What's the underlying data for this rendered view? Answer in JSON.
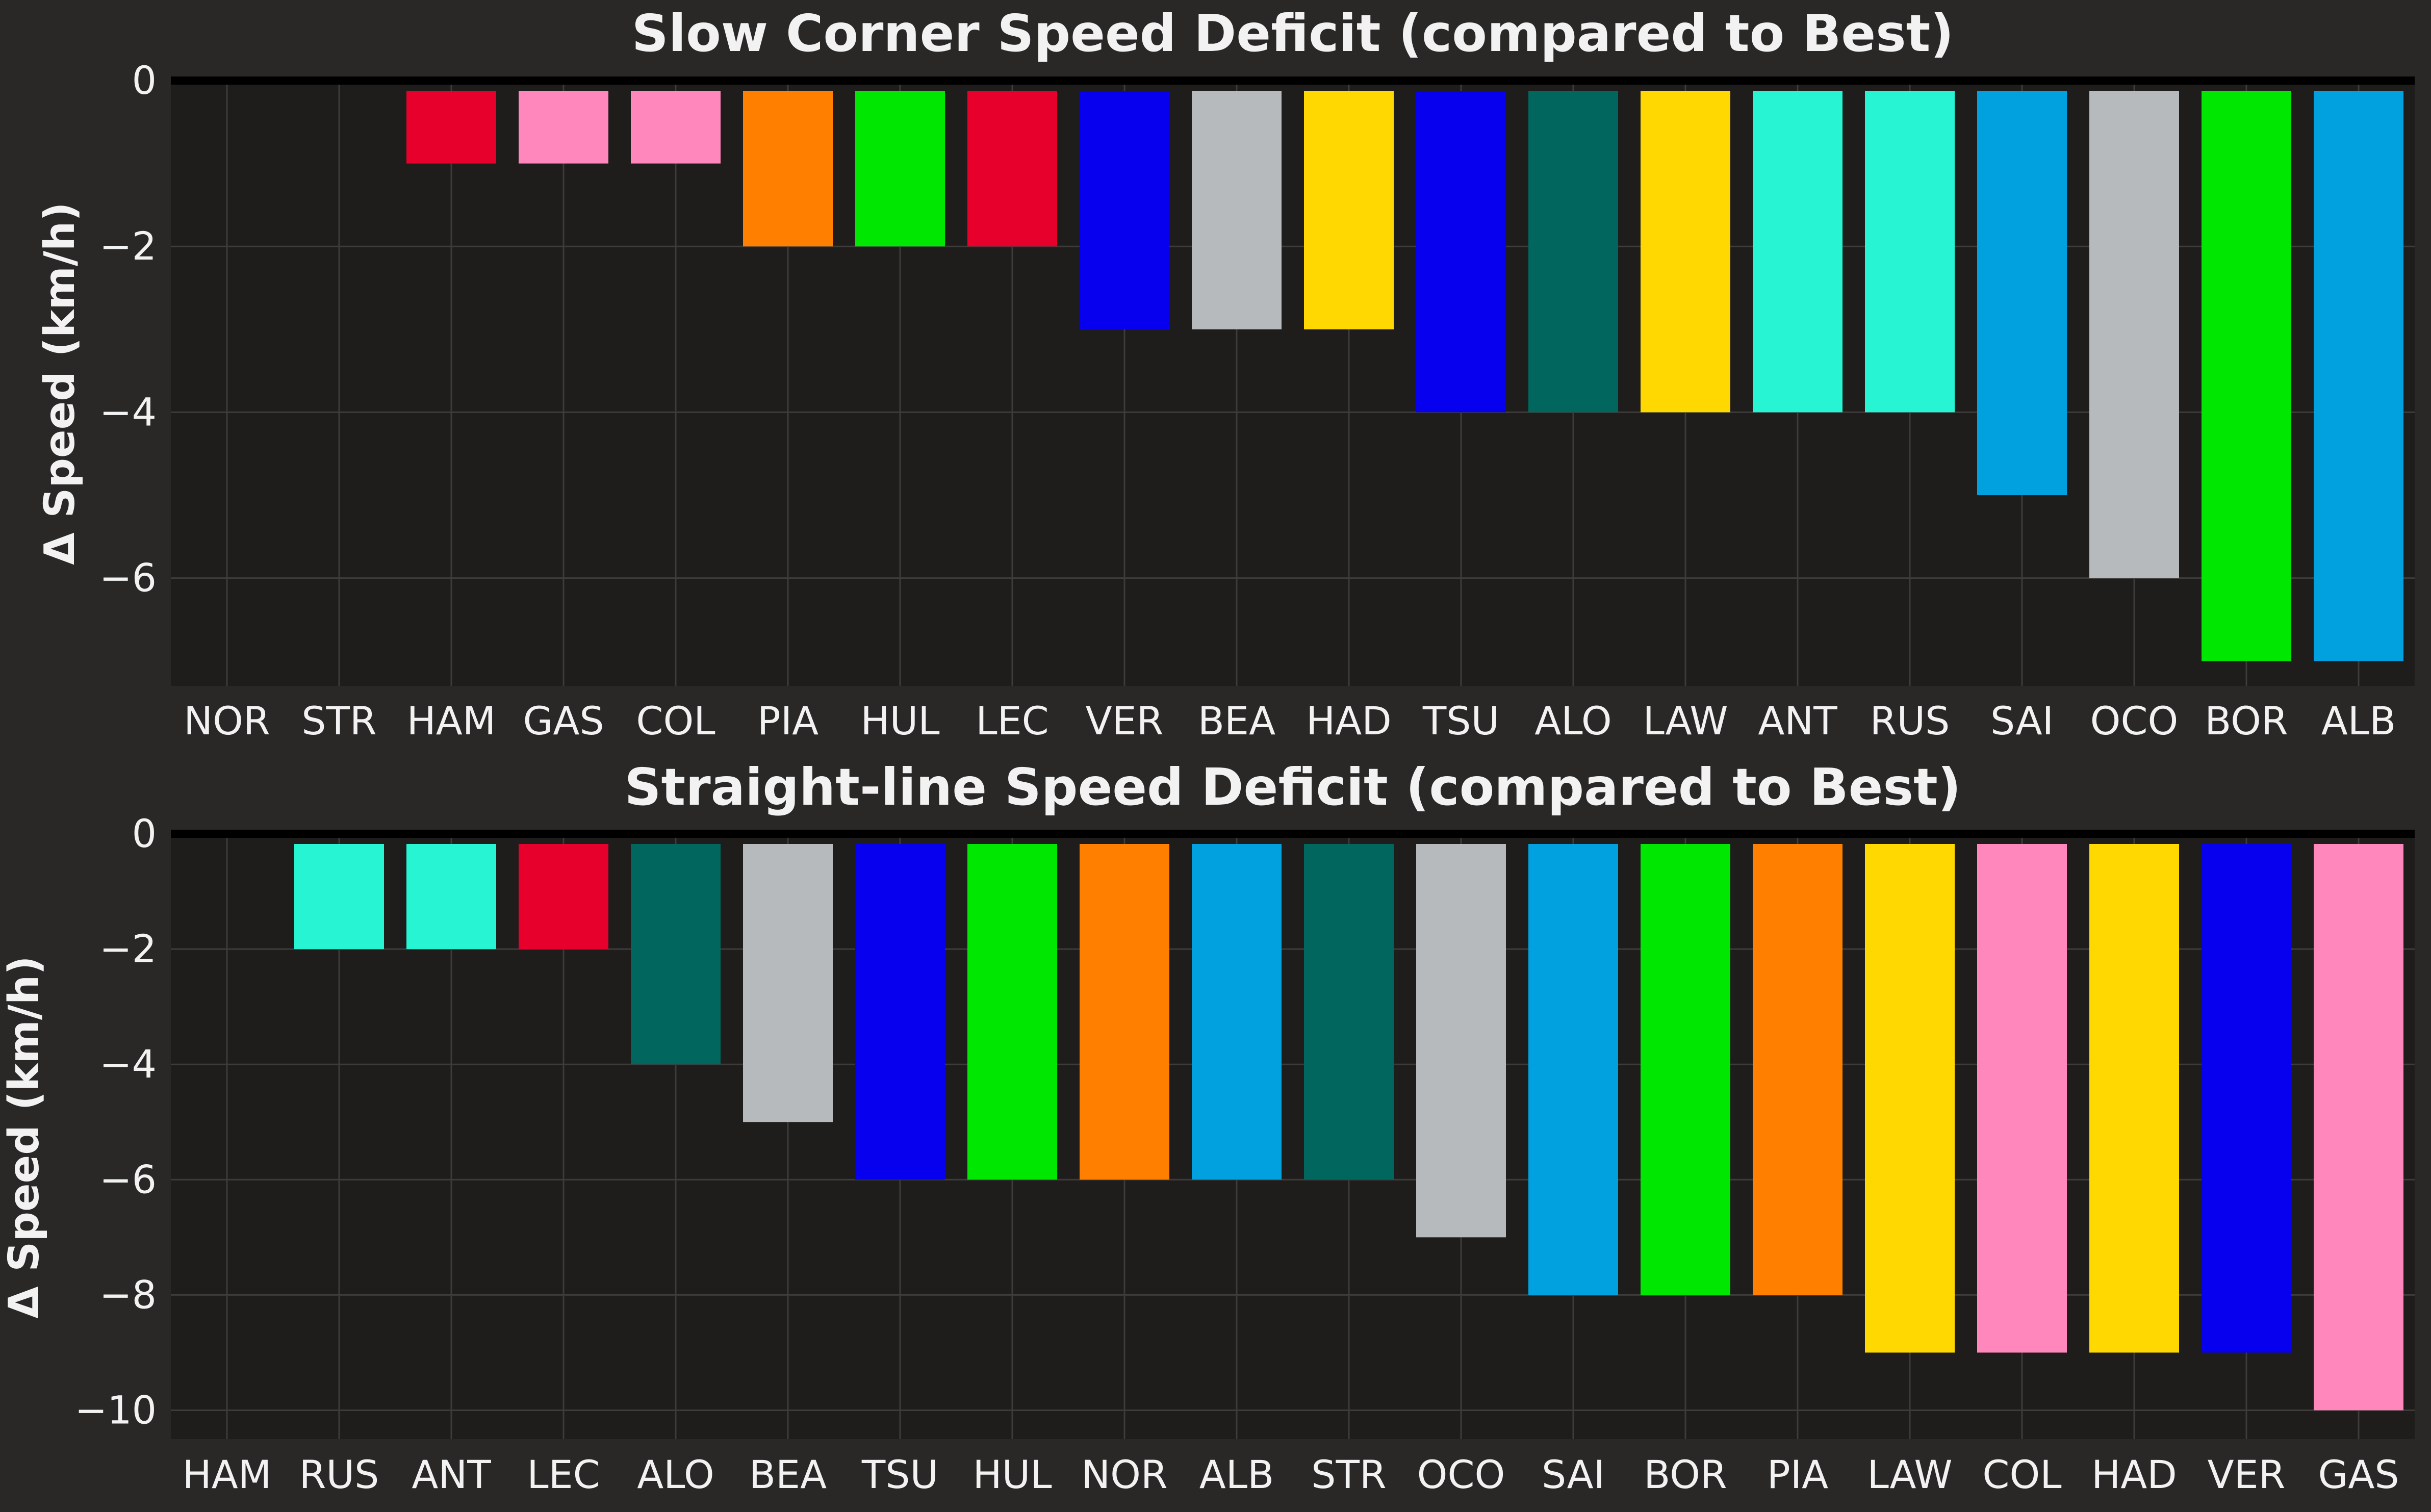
{
  "chart_data": [
    {
      "type": "bar",
      "title": "Slow Corner Speed Deficit (compared to Best)",
      "xlabel": "",
      "ylabel": "Δ Speed (km/h)",
      "ylim": [
        -7.3,
        0
      ],
      "yticks": [
        0,
        -2,
        -4,
        -6
      ],
      "ytick_labels": [
        "0",
        "−2",
        "−4",
        "−6"
      ],
      "grid": true,
      "categories": [
        "NOR",
        "STR",
        "HAM",
        "GAS",
        "COL",
        "PIA",
        "HUL",
        "LEC",
        "VER",
        "BEA",
        "HAD",
        "TSU",
        "ALO",
        "LAW",
        "ANT",
        "RUS",
        "SAI",
        "OCO",
        "BOR",
        "ALB"
      ],
      "values": [
        0,
        0,
        -1,
        -1,
        -1,
        -2,
        -2,
        -2,
        -3,
        -3,
        -3,
        -4,
        -4,
        -4,
        -4,
        -4,
        -5,
        -6,
        -7,
        -7
      ],
      "colors": [
        "#FF8000",
        "#00665E",
        "#E8002D",
        "#FF87BC",
        "#FF87BC",
        "#FF8000",
        "#00E701",
        "#E8002D",
        "#0600EF",
        "#B6BABD",
        "#FED800",
        "#0600EF",
        "#00665E",
        "#FED800",
        "#27F4D2",
        "#27F4D2",
        "#00A1DE",
        "#B6BABD",
        "#00E701",
        "#00A1DE"
      ]
    },
    {
      "type": "bar",
      "title": "Straight-line Speed Deficit (compared to Best)",
      "xlabel": "",
      "ylabel": "Δ Speed (km/h)",
      "ylim": [
        -10.5,
        0
      ],
      "yticks": [
        0,
        -2,
        -4,
        -6,
        -8,
        -10
      ],
      "ytick_labels": [
        "0",
        "−2",
        "−4",
        "−6",
        "−8",
        "−10"
      ],
      "grid": true,
      "categories": [
        "HAM",
        "RUS",
        "ANT",
        "LEC",
        "ALO",
        "BEA",
        "TSU",
        "HUL",
        "NOR",
        "ALB",
        "STR",
        "OCO",
        "SAI",
        "BOR",
        "PIA",
        "LAW",
        "COL",
        "HAD",
        "VER",
        "GAS"
      ],
      "values": [
        0,
        -2,
        -2,
        -2,
        -4,
        -5,
        -6,
        -6,
        -6,
        -6,
        -6,
        -7,
        -8,
        -8,
        -8,
        -9,
        -9,
        -9,
        -9,
        -10
      ],
      "colors": [
        "#E8002D",
        "#27F4D2",
        "#27F4D2",
        "#E8002D",
        "#00665E",
        "#B6BABD",
        "#0600EF",
        "#00E701",
        "#FF8000",
        "#00A1DE",
        "#00665E",
        "#B6BABD",
        "#00A1DE",
        "#00E701",
        "#FF8000",
        "#FED800",
        "#FF87BC",
        "#FED800",
        "#0600EF",
        "#FF87BC"
      ]
    }
  ]
}
